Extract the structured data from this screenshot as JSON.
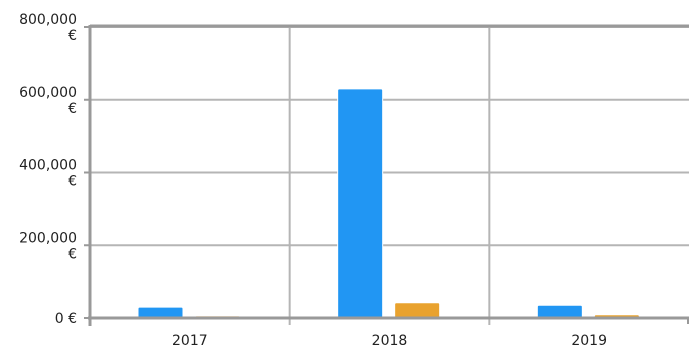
{
  "chart_data": {
    "type": "bar",
    "categories": [
      "2017",
      "2018",
      "2019"
    ],
    "series": [
      {
        "values": [
          30000,
          630000,
          35000
        ]
      },
      {
        "values": [
          6000,
          42000,
          9000
        ]
      },
      {
        "values": [
          0,
          0,
          0
        ]
      }
    ],
    "y_ticks": [
      {
        "value": 0,
        "lines": [
          "0 €"
        ]
      },
      {
        "value": 200000,
        "lines": [
          "200,000",
          "€"
        ]
      },
      {
        "value": 400000,
        "lines": [
          "400,000",
          "€"
        ]
      },
      {
        "value": 600000,
        "lines": [
          "600,000",
          "€"
        ]
      },
      {
        "value": 800000,
        "lines": [
          "800,000",
          "€"
        ]
      }
    ],
    "ylim": [
      0,
      800000
    ],
    "grid": true,
    "colors": {
      "series": [
        "#2196F3",
        "#E9A22E",
        "#F5DEB3"
      ],
      "series_alt": [
        "#2196F3",
        "#E9A22E",
        "#F5E6C8"
      ],
      "grid": "#b5b5b5",
      "axis": "#999999"
    }
  }
}
